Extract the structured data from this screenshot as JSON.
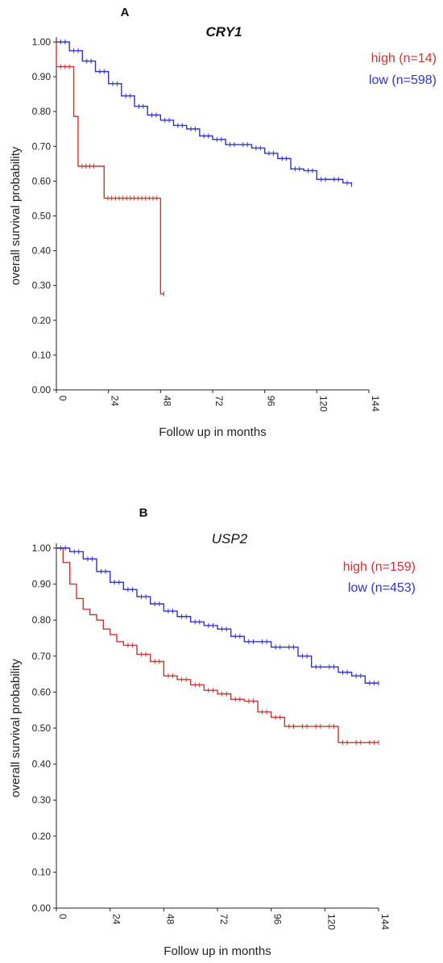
{
  "chart_data": [
    {
      "type": "line",
      "panel_label": "A",
      "title": "CRY1",
      "xlabel": "Follow up in months",
      "ylabel": "overall survival probability",
      "xlim": [
        0,
        144
      ],
      "ylim": [
        0,
        1
      ],
      "x_ticks": [
        "0",
        "24",
        "48",
        "72",
        "96",
        "120",
        "144"
      ],
      "y_ticks": [
        "0.00",
        "0.10",
        "0.20",
        "0.30",
        "0.40",
        "0.50",
        "0.60",
        "0.70",
        "0.80",
        "0.90",
        "1.00"
      ],
      "legend": {
        "placement": "top-right"
      },
      "series": [
        {
          "name": "high (n=14)",
          "color": "#cc3333",
          "x": [
            0,
            0,
            8,
            8,
            10,
            10,
            19,
            22,
            48,
            48,
            49.5
          ],
          "y": [
            1.0,
            0.929,
            0.929,
            0.786,
            0.786,
            0.643,
            0.643,
            0.551,
            0.551,
            0.276,
            0.276
          ]
        },
        {
          "name": "low (n=598)",
          "color": "#3333cc",
          "x": [
            0,
            6,
            12,
            18,
            24,
            30,
            36,
            42,
            48,
            54,
            60,
            66,
            72,
            78,
            84,
            90,
            96,
            102,
            108,
            114,
            120,
            126,
            132,
            136
          ],
          "y": [
            1.0,
            0.975,
            0.945,
            0.915,
            0.88,
            0.845,
            0.815,
            0.79,
            0.775,
            0.76,
            0.75,
            0.73,
            0.72,
            0.705,
            0.705,
            0.695,
            0.68,
            0.665,
            0.635,
            0.63,
            0.605,
            0.605,
            0.595,
            0.59
          ]
        }
      ]
    },
    {
      "type": "line",
      "panel_label": "B",
      "title": "USP2",
      "xlabel": "Follow up in months",
      "ylabel": "overall survival probability",
      "xlim": [
        0,
        144
      ],
      "ylim": [
        0,
        1
      ],
      "x_ticks": [
        "0",
        "24",
        "48",
        "72",
        "96",
        "120",
        "144"
      ],
      "y_ticks": [
        "0.00",
        "0.10",
        "0.20",
        "0.30",
        "0.40",
        "0.50",
        "0.60",
        "0.70",
        "0.80",
        "0.90",
        "1.00"
      ],
      "legend": {
        "placement": "top-right"
      },
      "series": [
        {
          "name": "high (n=159)",
          "color": "#cc3333",
          "x": [
            0,
            3,
            6,
            9,
            12,
            15,
            18,
            21,
            24,
            27,
            30,
            36,
            42,
            48,
            54,
            60,
            66,
            72,
            78,
            84,
            90,
            96,
            102,
            108,
            114,
            120,
            126,
            132,
            138,
            144
          ],
          "y": [
            1.0,
            0.96,
            0.9,
            0.86,
            0.83,
            0.815,
            0.8,
            0.775,
            0.76,
            0.74,
            0.73,
            0.705,
            0.685,
            0.645,
            0.635,
            0.62,
            0.605,
            0.595,
            0.58,
            0.575,
            0.545,
            0.53,
            0.505,
            0.505,
            0.505,
            0.505,
            0.46,
            0.46,
            0.46,
            0.46
          ]
        },
        {
          "name": "low (n=453)",
          "color": "#3333cc",
          "x": [
            0,
            6,
            12,
            18,
            24,
            30,
            36,
            42,
            48,
            54,
            60,
            66,
            72,
            78,
            84,
            90,
            96,
            102,
            108,
            114,
            120,
            126,
            132,
            138,
            144
          ],
          "y": [
            1.0,
            0.99,
            0.97,
            0.935,
            0.905,
            0.885,
            0.865,
            0.845,
            0.825,
            0.81,
            0.795,
            0.785,
            0.775,
            0.755,
            0.74,
            0.74,
            0.725,
            0.725,
            0.7,
            0.67,
            0.67,
            0.655,
            0.645,
            0.625,
            0.625
          ]
        }
      ]
    }
  ]
}
